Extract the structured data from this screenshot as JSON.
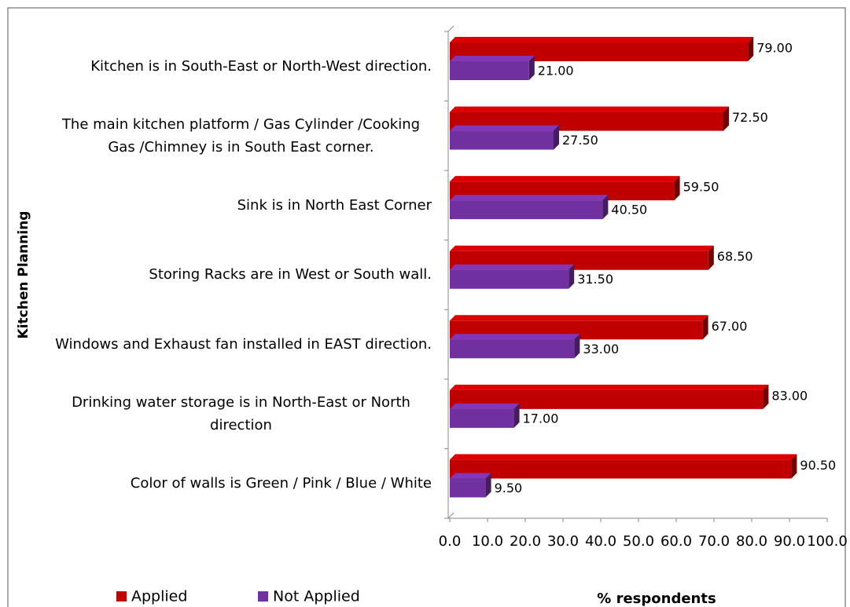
{
  "chart_data": {
    "type": "bar",
    "orientation": "horizontal",
    "y_axis_label": "Kitchen Planning",
    "x_axis_label": "% respondents",
    "categories": [
      "Kitchen is in South-East or North-West direction.",
      "The main kitchen platform / Gas Cylinder /Cooking Gas /Chimney is in South East corner.",
      "Sink is in North East Corner",
      "Storing Racks are in West or South wall.",
      "Windows and Exhaust fan installed in EAST direction.",
      "Drinking water storage is in North-East or North direction",
      "Color of walls is Green / Pink / Blue / White"
    ],
    "series": [
      {
        "name": "Applied",
        "color": "#c00000",
        "values": [
          79,
          72.5,
          59.5,
          68.5,
          67,
          83,
          90.5
        ],
        "value_labels": [
          "79.00",
          "72.50",
          "59.50",
          "68.50",
          "67.00",
          "83.00",
          "90.50"
        ]
      },
      {
        "name": "Not Applied",
        "color": "#7030a0",
        "values": [
          21,
          27.5,
          40.5,
          31.5,
          33,
          17,
          9.5
        ],
        "value_labels": [
          "21.00",
          "27.50",
          "40.50",
          "31.50",
          "33.00",
          "17.00",
          "9.50"
        ]
      }
    ],
    "xlim": [
      0,
      100
    ],
    "xticks": [
      {
        "value": 0,
        "label": "0.0"
      },
      {
        "value": 10,
        "label": "10.0"
      },
      {
        "value": 20,
        "label": "20.0"
      },
      {
        "value": 30,
        "label": "30.0"
      },
      {
        "value": 40,
        "label": "40.0"
      },
      {
        "value": 50,
        "label": "50.0"
      },
      {
        "value": 60,
        "label": "60.0"
      },
      {
        "value": 70,
        "label": "70.0"
      },
      {
        "value": 80,
        "label": "80.0"
      },
      {
        "value": 90,
        "label": "90.0"
      },
      {
        "value": 100,
        "label": "100.0"
      }
    ],
    "grid": false,
    "legend": "bottom"
  }
}
